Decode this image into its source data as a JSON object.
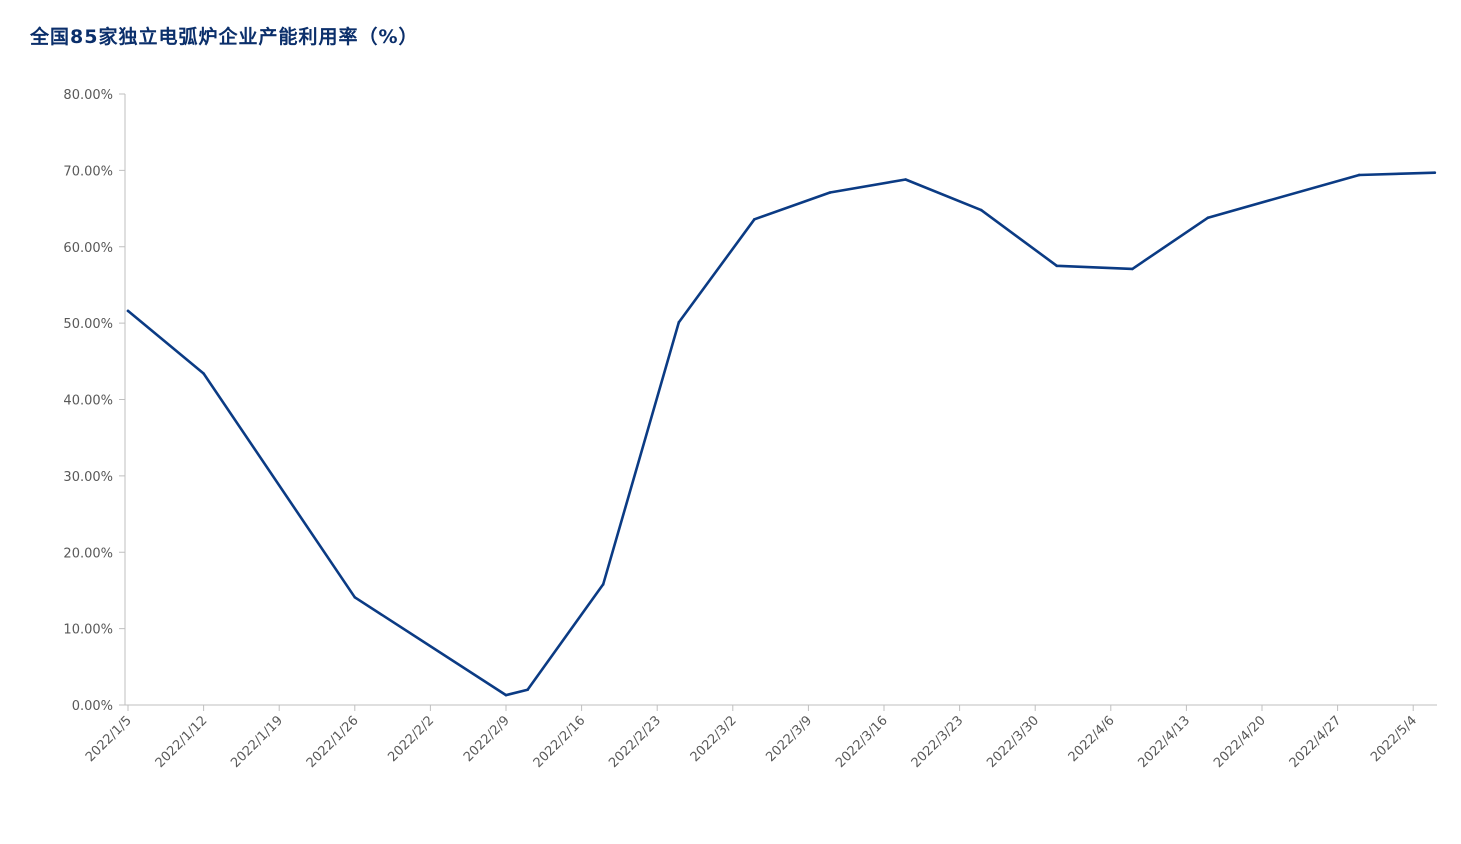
{
  "chart_data": {
    "type": "line",
    "title": "全国85家独立电弧炉企业产能利用率（%）",
    "xlabel": "",
    "ylabel": "",
    "ylim": [
      0,
      80
    ],
    "yticks": [
      "0.00%",
      "10.00%",
      "20.00%",
      "30.00%",
      "40.00%",
      "50.00%",
      "60.00%",
      "70.00%",
      "80.00%"
    ],
    "xticks": [
      "2022/1/5",
      "2022/1/12",
      "2022/1/19",
      "2022/1/26",
      "2022/2/2",
      "2022/2/9",
      "2022/2/16",
      "2022/2/23",
      "2022/3/2",
      "2022/3/9",
      "2022/3/16",
      "2022/3/23",
      "2022/3/30",
      "2022/4/6",
      "2022/4/13",
      "2022/4/20",
      "2022/4/27",
      "2022/5/4"
    ],
    "grid": false,
    "legend": "none",
    "colors": {
      "line": "#0b3b84",
      "axis": "#bfbfbf"
    },
    "series": [
      {
        "x": [
          "2022/1/5",
          "2022/1/12",
          "2022/1/26",
          "2022/2/9",
          "2022/2/11",
          "2022/2/18",
          "2022/2/25",
          "2022/3/4",
          "2022/3/11",
          "2022/3/18",
          "2022/3/25",
          "2022/4/1",
          "2022/4/8",
          "2022/4/15",
          "2022/4/29",
          "2022/5/6"
        ],
        "values": [
          51.6,
          43.4,
          14.1,
          1.3,
          2.0,
          15.8,
          50.1,
          63.6,
          67.1,
          68.8,
          64.8,
          57.5,
          57.1,
          63.8,
          69.4,
          69.7
        ]
      }
    ]
  }
}
